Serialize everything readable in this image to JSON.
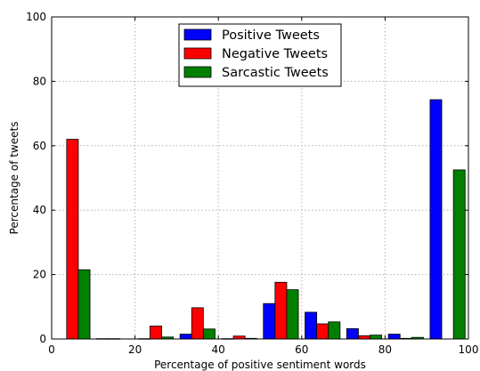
{
  "chart_data": {
    "type": "bar",
    "xlabel": "Percentage of positive sentiment words",
    "ylabel": "Percentage of tweets",
    "xlim": [
      0,
      100
    ],
    "ylim": [
      0,
      100
    ],
    "xticks": [
      0,
      20,
      40,
      60,
      80,
      100
    ],
    "yticks": [
      0,
      20,
      40,
      60,
      80,
      100
    ],
    "grid": true,
    "legend_position": "top-center",
    "bin_centers": [
      5,
      15,
      25,
      35,
      45,
      55,
      65,
      75,
      85,
      95
    ],
    "series": [
      {
        "name": "Positive Tweets",
        "color": "#0000ff",
        "values": [
          0,
          0.1,
          0.1,
          1.5,
          0.1,
          11,
          8.3,
          3.2,
          1.5,
          74.3
        ]
      },
      {
        "name": "Negative Tweets",
        "color": "#ff0000",
        "values": [
          62,
          0.1,
          4,
          9.7,
          0.9,
          17.6,
          4.7,
          1,
          0.2,
          0
        ]
      },
      {
        "name": "Sarcastic Tweets",
        "color": "#007f00",
        "values": [
          21.5,
          0,
          0.6,
          3.1,
          0.2,
          15.3,
          5.3,
          1.2,
          0.5,
          52.5
        ]
      }
    ]
  }
}
